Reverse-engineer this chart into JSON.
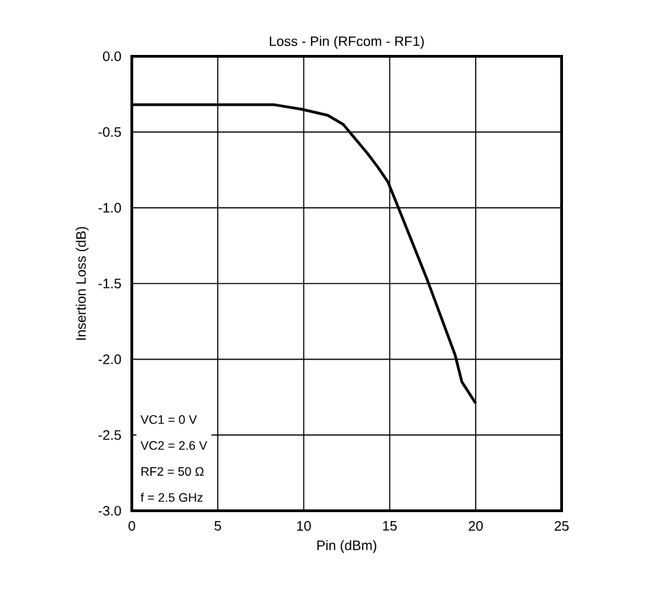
{
  "chart_data": {
    "type": "line",
    "title": "Loss - Pin (RFcom - RF1)",
    "xlabel": "Pin (dBm)",
    "ylabel": "Insertion Loss (dB)",
    "x": [
      0,
      4,
      8.3,
      9.9,
      11.4,
      12.3,
      13.7,
      14.3,
      14.9,
      15.4,
      17.2,
      18.8,
      19.2,
      20
    ],
    "series": [
      {
        "color": "#000000",
        "values": [
          -0.32,
          -0.32,
          -0.32,
          -0.35,
          -0.39,
          -0.45,
          -0.64,
          -0.73,
          -0.83,
          -0.97,
          -1.48,
          -1.97,
          -2.15,
          -2.29
        ]
      }
    ],
    "xlim": [
      0,
      25
    ],
    "xticks": [
      0,
      5,
      10,
      15,
      20,
      25
    ],
    "ylim": [
      -3,
      0
    ],
    "yticks": [
      {
        "value": 0,
        "label": "0.0"
      },
      {
        "value": -0.5,
        "label": "-0.5"
      },
      {
        "value": -1,
        "label": "-1.0"
      },
      {
        "value": -1.5,
        "label": "-1.5"
      },
      {
        "value": -2,
        "label": "-2.0"
      },
      {
        "value": -2.5,
        "label": "-2.5"
      },
      {
        "value": -3,
        "label": "-3.0"
      }
    ],
    "grid": true,
    "marker": "none",
    "line_style": "solid",
    "annotations": [
      "VC1 = 0 V",
      "VC2 = 2.6 V",
      "RF2 = 50 Ω",
      "f = 2.5 GHz"
    ]
  }
}
